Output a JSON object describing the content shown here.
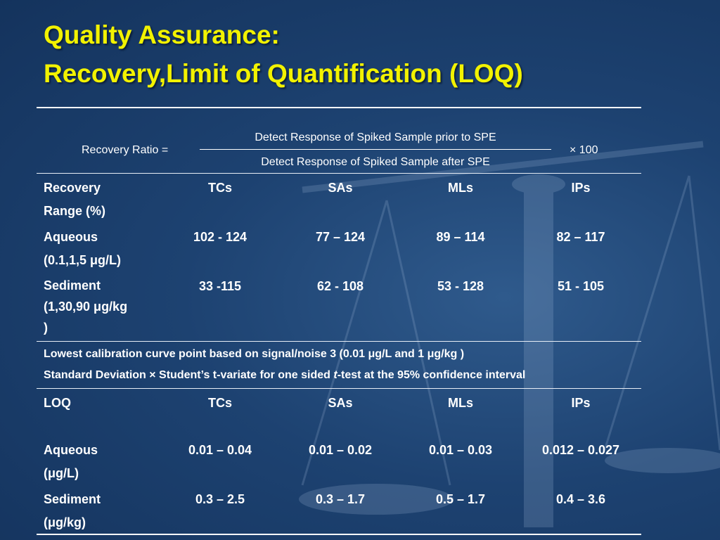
{
  "title": {
    "line1": "Quality Assurance:",
    "line2": "Recovery,Limit of Quantification (LOQ)"
  },
  "formula": {
    "label": "Recovery Ratio =",
    "numerator": "Detect Response of Spiked Sample prior to SPE",
    "denominator": "Detect Response of Spiked Sample after SPE",
    "multiplier": "× 100"
  },
  "recovery": {
    "header": {
      "label_line1": "Recovery",
      "label_line2": "Range (%)",
      "cols": [
        "TCs",
        "SAs",
        "MLs",
        "IPs"
      ]
    },
    "rows": [
      {
        "label_line1": "Aqueous",
        "label_line2": "(0.1,1,5 μg/L)",
        "label_line3": "",
        "values": [
          "102 - 124",
          "77 – 124",
          "89 – 114",
          "82 – 117"
        ]
      },
      {
        "label_line1": "Sediment",
        "label_line2": "(1,30,90 μg/kg",
        "label_line3": ")",
        "values": [
          "33 -115",
          "62 - 108",
          "53 - 128",
          "51 - 105"
        ]
      }
    ]
  },
  "loq_notes": {
    "line1": "Lowest calibration curve point based on signal/noise 3 (0.01 μg/L and 1 μg/kg )",
    "line2_a": "Standard Deviation × Student’s t-variate for one sided ",
    "line2_t": "t",
    "line2_b": "-test at the 95% confidence interval"
  },
  "loq": {
    "header": {
      "label": "LOQ",
      "cols": [
        "TCs",
        "SAs",
        "MLs",
        "IPs"
      ]
    },
    "rows": [
      {
        "label_line1": "Aqueous",
        "label_line2": "(μg/L)",
        "values": [
          "0.01 – 0.04",
          "0.01 – 0.02",
          "0.01 – 0.03",
          "0.012 – 0.027"
        ]
      },
      {
        "label_line1": "Sediment",
        "label_line2": "(μg/kg)",
        "values": [
          "0.3 – 2.5",
          "0.3 – 1.7",
          "0.5 – 1.7",
          "0.4 – 3.6"
        ]
      }
    ]
  },
  "colors": {
    "background": "#1d4271",
    "title": "#f2f200",
    "text": "#ffffff"
  }
}
